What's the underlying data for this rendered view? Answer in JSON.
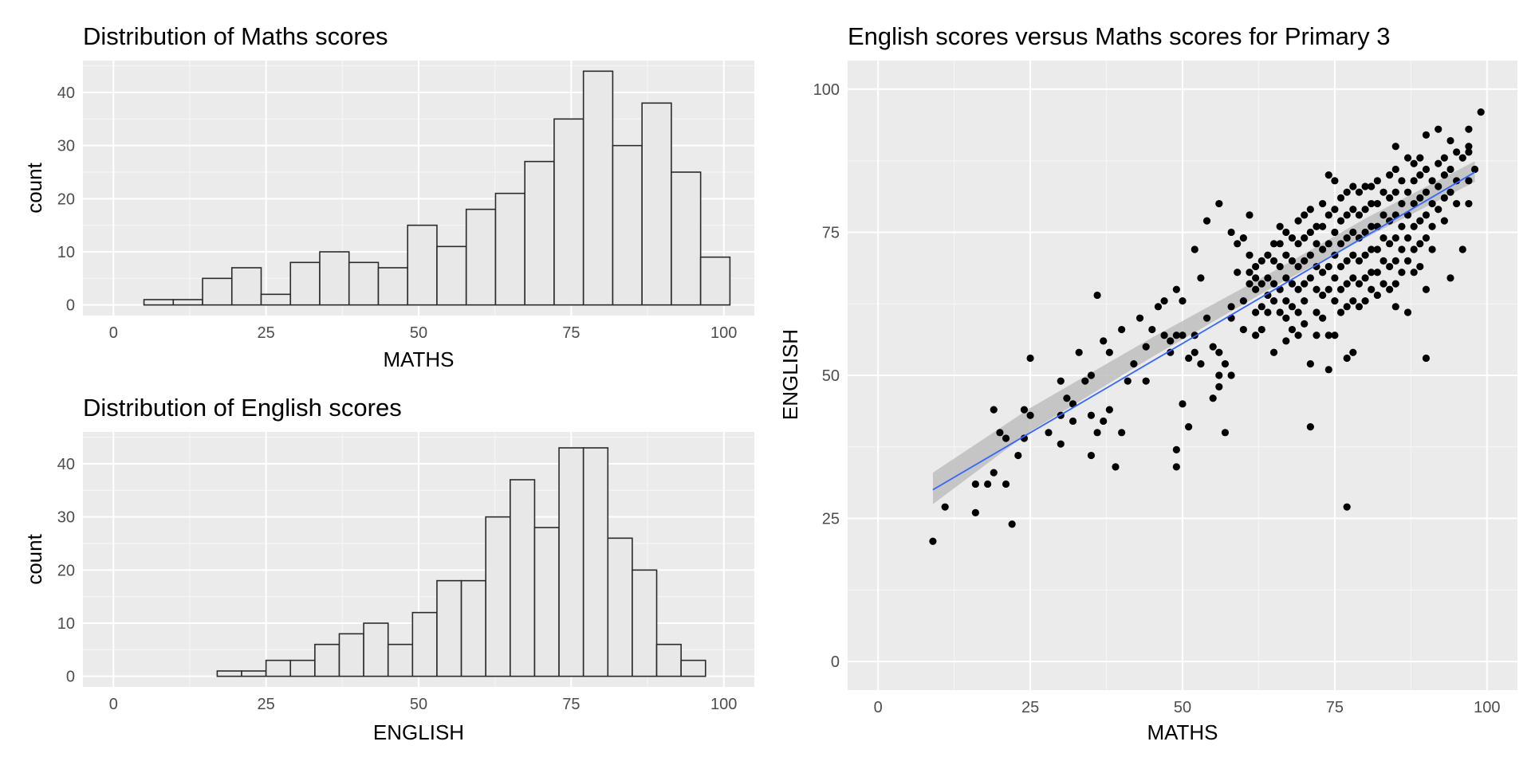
{
  "colors": {
    "panel_bg": "#ebebeb",
    "grid_major": "#ffffff",
    "grid_minor": "#f5f5f5",
    "bar_fill": "#e8e8e8",
    "bar_stroke": "#2b2b2b",
    "point": "#000000",
    "smooth_line": "#3366ff",
    "smooth_band": "#bebebe",
    "tick_text": "#4d4d4d"
  },
  "chart_data": [
    {
      "type": "bar",
      "subtype": "histogram",
      "title": "Distribution of Maths scores",
      "xlabel": "MATHS",
      "ylabel": "count",
      "xlim": [
        -5,
        105
      ],
      "ylim": [
        -2,
        46
      ],
      "xticks": [
        0,
        25,
        50,
        75,
        100
      ],
      "yticks": [
        0,
        10,
        20,
        30,
        40
      ],
      "bin_edges": [
        5,
        9.8,
        14.6,
        19.4,
        24.2,
        29,
        33.8,
        38.6,
        43.4,
        48.2,
        53,
        57.8,
        62.6,
        67.4,
        72.2,
        77,
        81.8,
        86.6,
        91.4,
        96.2,
        101
      ],
      "values": [
        1,
        1,
        5,
        7,
        2,
        8,
        10,
        8,
        7,
        15,
        11,
        18,
        21,
        27,
        35,
        44,
        30,
        38,
        25,
        9
      ],
      "grid": true
    },
    {
      "type": "bar",
      "subtype": "histogram",
      "title": "Distribution of English scores",
      "xlabel": "ENGLISH",
      "ylabel": "count",
      "xlim": [
        -5,
        105
      ],
      "ylim": [
        -2,
        46
      ],
      "xticks": [
        0,
        25,
        50,
        75,
        100
      ],
      "yticks": [
        0,
        10,
        20,
        30,
        40
      ],
      "bin_edges": [
        17,
        21,
        25,
        29,
        33,
        37,
        41,
        45,
        49,
        53,
        57,
        61,
        65,
        69,
        73,
        77,
        81,
        85,
        89,
        93,
        97
      ],
      "values": [
        1,
        1,
        3,
        3,
        6,
        8,
        10,
        6,
        12,
        18,
        18,
        30,
        37,
        28,
        43,
        43,
        26,
        20,
        6,
        3
      ],
      "grid": true
    },
    {
      "type": "scatter",
      "title": "English scores versus Maths scores for Primary 3",
      "xlabel": "MATHS",
      "ylabel": "ENGLISH",
      "xlim": [
        -5,
        105
      ],
      "ylim": [
        -5,
        105
      ],
      "xticks": [
        0,
        25,
        50,
        75,
        100
      ],
      "yticks": [
        0,
        25,
        50,
        75,
        100
      ],
      "grid": true,
      "fit_line": {
        "x": [
          9,
          98
        ],
        "y": [
          30,
          85.5
        ]
      },
      "fit_band": {
        "x": [
          9,
          25,
          45,
          65,
          80,
          98
        ],
        "lower": [
          27.5,
          40.2,
          53.2,
          65.5,
          74.0,
          83.8
        ],
        "upper": [
          33.0,
          44.3,
          56.6,
          68.2,
          77.4,
          87.4
        ]
      },
      "points": [
        [
          9,
          21
        ],
        [
          11,
          27
        ],
        [
          16,
          26
        ],
        [
          16,
          31
        ],
        [
          18,
          31
        ],
        [
          19,
          33
        ],
        [
          19,
          44
        ],
        [
          20,
          40
        ],
        [
          21,
          39
        ],
        [
          21,
          31
        ],
        [
          22,
          24
        ],
        [
          23,
          36
        ],
        [
          24,
          39
        ],
        [
          24,
          44
        ],
        [
          25,
          43
        ],
        [
          25,
          53
        ],
        [
          28,
          40
        ],
        [
          30,
          49
        ],
        [
          30,
          43
        ],
        [
          30,
          38
        ],
        [
          31,
          46
        ],
        [
          32,
          45
        ],
        [
          32,
          42
        ],
        [
          33,
          54
        ],
        [
          34,
          49
        ],
        [
          35,
          50
        ],
        [
          35,
          43
        ],
        [
          35,
          36
        ],
        [
          36,
          64
        ],
        [
          36,
          40
        ],
        [
          37,
          56
        ],
        [
          37,
          42
        ],
        [
          38,
          54
        ],
        [
          38,
          44
        ],
        [
          39,
          34
        ],
        [
          40,
          58
        ],
        [
          40,
          40
        ],
        [
          41,
          49
        ],
        [
          42,
          52
        ],
        [
          43,
          60
        ],
        [
          44,
          55
        ],
        [
          44,
          49
        ],
        [
          45,
          58
        ],
        [
          46,
          62
        ],
        [
          47,
          63
        ],
        [
          47,
          57
        ],
        [
          48,
          56
        ],
        [
          48,
          54
        ],
        [
          49,
          65
        ],
        [
          49,
          57
        ],
        [
          49,
          37
        ],
        [
          49,
          34
        ],
        [
          50,
          63
        ],
        [
          50,
          57
        ],
        [
          50,
          45
        ],
        [
          51,
          53
        ],
        [
          51,
          41
        ],
        [
          52,
          72
        ],
        [
          52,
          57
        ],
        [
          52,
          54
        ],
        [
          53,
          67
        ],
        [
          53,
          52
        ],
        [
          54,
          60
        ],
        [
          54,
          77
        ],
        [
          55,
          55
        ],
        [
          55,
          46
        ],
        [
          56,
          80
        ],
        [
          56,
          54
        ],
        [
          56,
          50
        ],
        [
          56,
          48
        ],
        [
          57,
          52
        ],
        [
          57,
          40
        ],
        [
          58,
          75
        ],
        [
          58,
          62
        ],
        [
          58,
          60
        ],
        [
          58,
          50
        ],
        [
          59,
          73
        ],
        [
          59,
          68
        ],
        [
          60,
          74
        ],
        [
          60,
          63
        ],
        [
          60,
          58
        ],
        [
          61,
          78
        ],
        [
          61,
          71
        ],
        [
          61,
          68
        ],
        [
          61,
          66
        ],
        [
          62,
          69
        ],
        [
          62,
          67
        ],
        [
          62,
          65
        ],
        [
          62,
          61
        ],
        [
          62,
          57
        ],
        [
          63,
          70
        ],
        [
          63,
          66
        ],
        [
          63,
          62
        ],
        [
          63,
          58
        ],
        [
          64,
          71
        ],
        [
          64,
          67
        ],
        [
          64,
          64
        ],
        [
          64,
          61
        ],
        [
          65,
          73
        ],
        [
          65,
          70
        ],
        [
          65,
          66
        ],
        [
          65,
          63
        ],
        [
          65,
          54
        ],
        [
          66,
          76
        ],
        [
          66,
          73
        ],
        [
          66,
          69
        ],
        [
          66,
          65
        ],
        [
          66,
          61
        ],
        [
          67,
          75
        ],
        [
          67,
          71
        ],
        [
          67,
          67
        ],
        [
          67,
          63
        ],
        [
          67,
          60
        ],
        [
          67,
          56
        ],
        [
          68,
          74
        ],
        [
          68,
          70
        ],
        [
          68,
          66
        ],
        [
          68,
          62
        ],
        [
          68,
          58
        ],
        [
          69,
          77
        ],
        [
          69,
          73
        ],
        [
          69,
          69
        ],
        [
          69,
          65
        ],
        [
          69,
          61
        ],
        [
          69,
          57
        ],
        [
          70,
          78
        ],
        [
          70,
          74
        ],
        [
          70,
          70
        ],
        [
          70,
          66
        ],
        [
          70,
          63
        ],
        [
          70,
          59
        ],
        [
          71,
          79
        ],
        [
          71,
          75
        ],
        [
          71,
          71
        ],
        [
          71,
          67
        ],
        [
          71,
          52
        ],
        [
          71,
          41
        ],
        [
          72,
          76
        ],
        [
          72,
          73
        ],
        [
          72,
          69
        ],
        [
          72,
          65
        ],
        [
          72,
          61
        ],
        [
          72,
          57
        ],
        [
          73,
          80
        ],
        [
          73,
          76
        ],
        [
          73,
          72
        ],
        [
          73,
          68
        ],
        [
          73,
          64
        ],
        [
          73,
          60
        ],
        [
          74,
          85
        ],
        [
          74,
          78
        ],
        [
          74,
          73
        ],
        [
          74,
          69
        ],
        [
          74,
          65
        ],
        [
          74,
          57
        ],
        [
          74,
          51
        ],
        [
          75,
          84
        ],
        [
          75,
          79
        ],
        [
          75,
          75
        ],
        [
          75,
          71
        ],
        [
          75,
          67
        ],
        [
          75,
          63
        ],
        [
          75,
          57
        ],
        [
          76,
          81
        ],
        [
          76,
          77
        ],
        [
          76,
          73
        ],
        [
          76,
          69
        ],
        [
          76,
          65
        ],
        [
          76,
          61
        ],
        [
          77,
          82
        ],
        [
          77,
          78
        ],
        [
          77,
          74
        ],
        [
          77,
          70
        ],
        [
          77,
          66
        ],
        [
          77,
          62
        ],
        [
          77,
          53
        ],
        [
          77,
          27
        ],
        [
          78,
          83
        ],
        [
          78,
          79
        ],
        [
          78,
          75
        ],
        [
          78,
          71
        ],
        [
          78,
          67
        ],
        [
          78,
          63
        ],
        [
          78,
          54
        ],
        [
          79,
          82
        ],
        [
          79,
          78
        ],
        [
          79,
          74
        ],
        [
          79,
          70
        ],
        [
          79,
          66
        ],
        [
          79,
          62
        ],
        [
          80,
          83
        ],
        [
          80,
          79
        ],
        [
          80,
          75
        ],
        [
          80,
          71
        ],
        [
          80,
          67
        ],
        [
          80,
          63
        ],
        [
          81,
          83
        ],
        [
          81,
          80
        ],
        [
          81,
          76
        ],
        [
          81,
          72
        ],
        [
          81,
          68
        ],
        [
          81,
          65
        ],
        [
          82,
          84
        ],
        [
          82,
          80
        ],
        [
          82,
          76
        ],
        [
          82,
          72
        ],
        [
          82,
          68
        ],
        [
          82,
          64
        ],
        [
          83,
          82
        ],
        [
          83,
          78
        ],
        [
          83,
          74
        ],
        [
          83,
          70
        ],
        [
          83,
          66
        ],
        [
          84,
          85
        ],
        [
          84,
          81
        ],
        [
          84,
          77
        ],
        [
          84,
          73
        ],
        [
          84,
          69
        ],
        [
          84,
          65
        ],
        [
          85,
          90
        ],
        [
          85,
          86
        ],
        [
          85,
          82
        ],
        [
          85,
          78
        ],
        [
          85,
          74
        ],
        [
          85,
          70
        ],
        [
          85,
          66
        ],
        [
          85,
          62
        ],
        [
          86,
          84
        ],
        [
          86,
          80
        ],
        [
          86,
          76
        ],
        [
          86,
          72
        ],
        [
          86,
          68
        ],
        [
          87,
          88
        ],
        [
          87,
          82
        ],
        [
          87,
          78
        ],
        [
          87,
          74
        ],
        [
          87,
          70
        ],
        [
          87,
          61
        ],
        [
          88,
          87
        ],
        [
          88,
          84
        ],
        [
          88,
          80
        ],
        [
          88,
          76
        ],
        [
          88,
          72
        ],
        [
          88,
          68
        ],
        [
          89,
          88
        ],
        [
          89,
          85
        ],
        [
          89,
          81
        ],
        [
          89,
          77
        ],
        [
          89,
          73
        ],
        [
          89,
          69
        ],
        [
          90,
          92
        ],
        [
          90,
          86
        ],
        [
          90,
          82
        ],
        [
          90,
          78
        ],
        [
          90,
          74
        ],
        [
          90,
          65
        ],
        [
          90,
          53
        ],
        [
          91,
          84
        ],
        [
          91,
          80
        ],
        [
          91,
          76
        ],
        [
          91,
          72
        ],
        [
          92,
          93
        ],
        [
          92,
          87
        ],
        [
          92,
          83
        ],
        [
          92,
          79
        ],
        [
          93,
          88
        ],
        [
          93,
          85
        ],
        [
          93,
          81
        ],
        [
          93,
          77
        ],
        [
          94,
          91
        ],
        [
          94,
          86
        ],
        [
          94,
          82
        ],
        [
          94,
          67
        ],
        [
          95,
          89
        ],
        [
          95,
          84
        ],
        [
          95,
          80
        ],
        [
          96,
          88
        ],
        [
          96,
          72
        ],
        [
          97,
          93
        ],
        [
          97,
          90
        ],
        [
          97,
          89
        ],
        [
          97,
          84
        ],
        [
          97,
          80
        ],
        [
          98,
          86
        ],
        [
          99,
          96
        ]
      ]
    }
  ]
}
